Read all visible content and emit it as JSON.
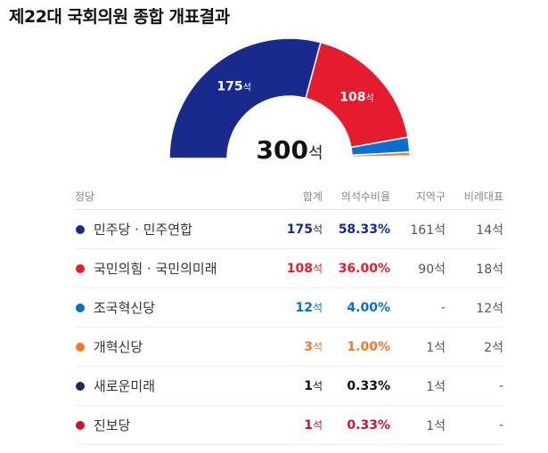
{
  "title": "제22대 국회의원 종합 개표결과",
  "chart_data": {
    "type": "pie",
    "total": 300,
    "total_unit": "석",
    "slices": [
      {
        "party": "민주당 · 민주연합",
        "value": 175,
        "color": "#1a2a8c",
        "label": "175",
        "unit": "석"
      },
      {
        "party": "국민의힘 · 국민의미래",
        "value": 108,
        "color": "#e41c2d",
        "label": "108",
        "unit": "석"
      },
      {
        "party": "조국혁신당",
        "value": 12,
        "color": "#0a6fd0",
        "label": "",
        "unit": ""
      },
      {
        "party": "개혁신당",
        "value": 3,
        "color": "#f7762a",
        "label": "",
        "unit": ""
      },
      {
        "party": "새로운미래",
        "value": 1,
        "color": "#1d2d4f",
        "label": "",
        "unit": ""
      },
      {
        "party": "진보당",
        "value": 1,
        "color": "#d1102c",
        "label": "",
        "unit": ""
      }
    ]
  },
  "table": {
    "headers": {
      "party": "정당",
      "total": "합계",
      "ratio": "의석수비율",
      "district": "지역구",
      "proportional": "비례대표"
    },
    "rows": [
      {
        "party": "민주당 · 민주연합",
        "color": "#1a2a8c",
        "total": "175",
        "unit": "석",
        "ratio": "58.33%",
        "district": "161석",
        "proportional": "14석",
        "emph": true
      },
      {
        "party": "국민의힘 · 국민의미래",
        "color": "#e41c2d",
        "total": "108",
        "unit": "석",
        "ratio": "36.00%",
        "district": "90석",
        "proportional": "18석",
        "emph": true
      },
      {
        "party": "조국혁신당",
        "color": "#0a6fd0",
        "total": "12",
        "unit": "석",
        "ratio": "4.00%",
        "district": "-",
        "proportional": "12석",
        "emph": true
      },
      {
        "party": "개혁신당",
        "color": "#f7762a",
        "total": "3",
        "unit": "석",
        "ratio": "1.00%",
        "district": "1석",
        "proportional": "2석",
        "emph": true
      },
      {
        "party": "새로운미래",
        "color": "#1d2d4f",
        "total": "1",
        "unit": "석",
        "ratio": "0.33%",
        "district": "1석",
        "proportional": "-",
        "emph": false
      },
      {
        "party": "진보당",
        "color": "#d1102c",
        "total": "1",
        "unit": "석",
        "ratio": "0.33%",
        "district": "1석",
        "proportional": "-",
        "emph": true
      }
    ]
  }
}
